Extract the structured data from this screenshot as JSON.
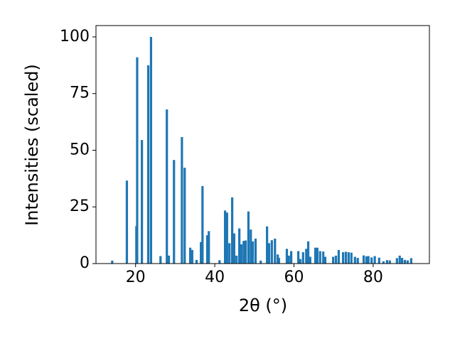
{
  "chart_data": {
    "type": "bar",
    "xlabel": "2θ (°)",
    "ylabel": "Intensities (scaled)",
    "color": "#1f77b4",
    "x": [
      14.1,
      17.8,
      20.2,
      20.4,
      21.6,
      23.2,
      23.9,
      26.3,
      27.9,
      28.4,
      29.7,
      31.7,
      32.4,
      33.8,
      34.3,
      35.4,
      36.5,
      36.9,
      38.1,
      38.5,
      41.2,
      42.6,
      43.1,
      43.7,
      44.4,
      44.9,
      45.5,
      46.2,
      46.7,
      47.3,
      47.8,
      48.5,
      49.1,
      49.6,
      50.3,
      51.6,
      53.2,
      53.7,
      54.4,
      55.2,
      55.9,
      56.2,
      58.2,
      58.7,
      59.3,
      61.1,
      61.6,
      62.3,
      63.1,
      63.6,
      64.1,
      65.4,
      65.9,
      66.6,
      67.4,
      67.9,
      69.9,
      70.6,
      71.3,
      72.4,
      73.1,
      73.8,
      74.5,
      75.4,
      76.1,
      77.6,
      78.3,
      78.8,
      79.6,
      80.4,
      81.5,
      82.6,
      83.5,
      84.2,
      86.0,
      86.7,
      87.3,
      88.0,
      88.7,
      89.6
    ],
    "values": [
      1.3,
      36.6,
      16.5,
      91,
      54.5,
      87.5,
      100,
      3.3,
      68,
      3.5,
      45.7,
      55.8,
      42.3,
      7,
      6,
      1.6,
      9.5,
      34.2,
      12.5,
      14.3,
      1.5,
      23.4,
      22.5,
      9,
      29.2,
      13.3,
      3.5,
      15.5,
      8.5,
      10,
      10.2,
      23,
      15,
      9.8,
      11,
      1.3,
      16.4,
      9,
      10.3,
      11,
      4,
      2.5,
      6.5,
      3.5,
      5.5,
      5.5,
      2,
      5,
      6.5,
      9.8,
      3,
      7,
      7,
      5.5,
      5.3,
      3,
      3,
      3.5,
      6,
      5,
      5.2,
      5,
      4.8,
      3,
      2.5,
      3.6,
      3.2,
      3.3,
      2.7,
      3.3,
      2.6,
      1,
      1.5,
      1.4,
      2.4,
      3.5,
      2.5,
      1.6,
      1.4,
      2.4
    ],
    "xlim": [
      10,
      94.2
    ],
    "ylim": [
      0,
      105
    ],
    "xticks": [
      20,
      40,
      60,
      80
    ],
    "yticks": [
      0,
      25,
      50,
      75,
      100
    ]
  }
}
